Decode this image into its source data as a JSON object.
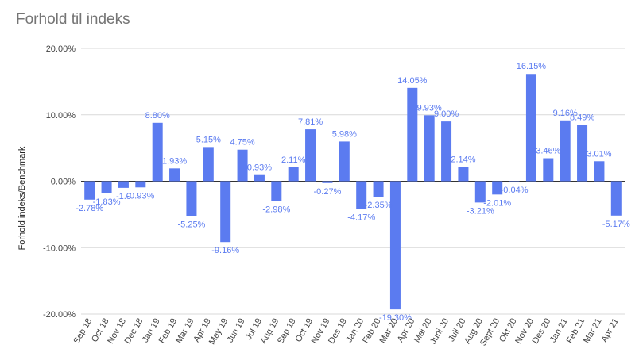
{
  "chart_data": {
    "type": "bar",
    "title": "Forhold til indeks",
    "xlabel": "",
    "ylabel": "Forhold indeks/Benchmark",
    "ylim": [
      -20,
      20
    ],
    "yticks": [
      "20.00%",
      "10.00%",
      "0.00%",
      "-10.00%",
      "-20.00%"
    ],
    "bar_color": "#5b7bf0",
    "grid": true,
    "categories": [
      "Sep 18",
      "Oct 18",
      "Nov 18",
      "Dec 18",
      "Jan 19",
      "Feb 19",
      "Mar 19",
      "Apr 19",
      "May 19",
      "Jun 19",
      "Jul 19",
      "Aug 19",
      "Sep 19",
      "Oct 19",
      "Nov 19",
      "Des 19",
      "Jan 20",
      "Feb 20",
      "Mar 20",
      "Apr 20",
      "Mai 20",
      "Juni 20",
      "Juli 20",
      "Aug 20",
      "Sept 20",
      "Okt 20",
      "Nov 20",
      "Des 20",
      "Jan 21",
      "Feb 21",
      "Mar 21",
      "Apr 21"
    ],
    "values": [
      -2.78,
      -1.83,
      -1.0,
      -0.93,
      8.8,
      1.93,
      -5.25,
      5.15,
      -9.16,
      4.75,
      0.93,
      -2.98,
      2.11,
      7.81,
      -0.27,
      5.98,
      -4.17,
      -2.35,
      -19.3,
      14.05,
      9.93,
      9.0,
      2.14,
      -3.21,
      -2.01,
      -0.04,
      16.15,
      3.46,
      9.16,
      8.49,
      3.01,
      -5.17
    ],
    "labels": [
      "-2.78%",
      "-1.83%",
      "-1.0",
      "-0.93%",
      "8.80%",
      "1.93%",
      "-5.25%",
      "5.15%",
      "-9.16%",
      "4.75%",
      "0.93%",
      "-2.98%",
      "2.11%",
      "7.81%",
      "-0.27%",
      "5.98%",
      "-4.17%",
      "-2.35%",
      "-19.30%",
      "14.05%",
      "9.93%",
      "9.00%",
      "2.14%",
      "-3.21%",
      "-2.01%",
      "-0.04%",
      "16.15%",
      "3.46%",
      "9.16%",
      "8.49%",
      "3.01%",
      "-5.17%"
    ]
  }
}
